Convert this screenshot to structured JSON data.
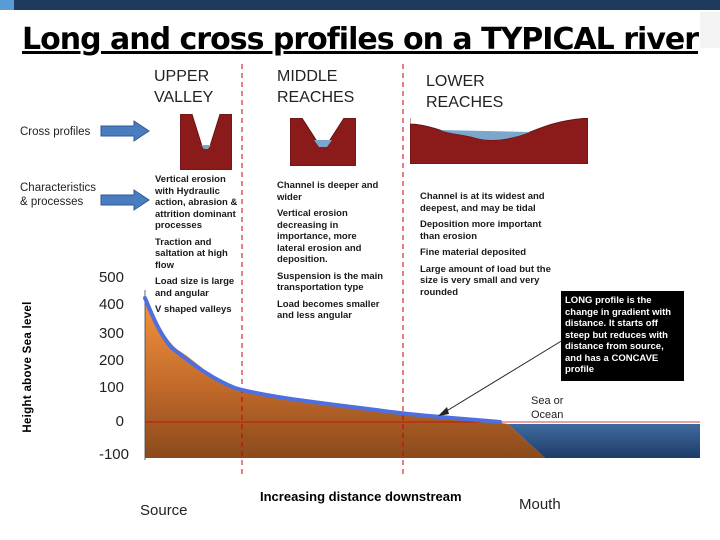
{
  "title": "Long and cross profiles on a TYPICAL river",
  "stages": {
    "upper": "UPPER\nVALLEY",
    "middle": "MIDDLE\nREACHES",
    "lower": "LOWER\nREACHES"
  },
  "row_labels": {
    "cross_profiles": "Cross profiles",
    "characteristics": "Characteristics\n& processes"
  },
  "characteristics": {
    "upper": [
      "Vertical erosion with Hydraulic action, abrasion & attrition dominant processes",
      "Traction and saltation at high flow",
      "Load size is large and angular",
      "V shaped valleys"
    ],
    "middle": [
      "Channel is deeper and wider",
      "Vertical erosion decreasing in importance, more lateral erosion and deposition.",
      "Suspension is the main transportation type",
      "Load becomes smaller and less angular"
    ],
    "lower": [
      "Channel is at its widest and deepest, and may be tidal",
      "Deposition more important than erosion",
      "Fine material deposited",
      "Large amount of load but the size is very small and very rounded"
    ]
  },
  "y_axis": {
    "label": "Height above Sea level",
    "ticks": [
      "500",
      "400",
      "300",
      "200",
      "100",
      "0",
      "-100"
    ]
  },
  "long_profile_note": "LONG profile is the change in gradient with distance. It starts off steep but reduces with distance from source, and has a CONCAVE profile",
  "sea_label": "Sea or\nOcean",
  "x_axis_label": "Increasing distance downstream",
  "source_label": "Source",
  "mouth_label": "Mouth",
  "colors": {
    "valley": "#8b1a1a",
    "water": "#7ba7cc",
    "long_profile": "#4d6fe0",
    "land_top": "#f3953e",
    "land_bottom": "#8a4a1c",
    "sea": "#2a5082",
    "arrow": "#4a7cc0",
    "guide_line": "#cc0000"
  }
}
